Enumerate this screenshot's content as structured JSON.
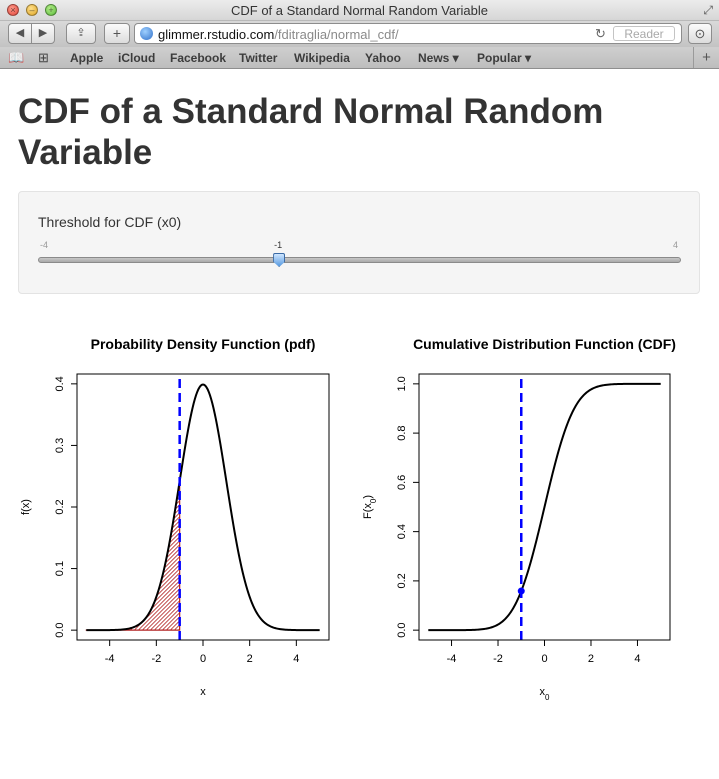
{
  "window": {
    "title": "CDF of a Standard Normal Random Variable"
  },
  "toolbar": {
    "url_host": "glimmer.rstudio.com",
    "url_path": "/fditraglia/normal_cdf/",
    "reader_label": "Reader"
  },
  "bookmarks": {
    "items": [
      "Apple",
      "iCloud",
      "Facebook",
      "Twitter",
      "Wikipedia",
      "Yahoo",
      "News ▾",
      "Popular ▾"
    ]
  },
  "page": {
    "title": "CDF of a Standard Normal Random Variable"
  },
  "slider": {
    "label": "Threshold for CDF (x0)",
    "min_label": "-4",
    "max_label": "4",
    "value_label": "-1",
    "min": -4,
    "max": 4,
    "value": -1
  },
  "colors": {
    "curve": "#000000",
    "threshold_line": "#0000ff",
    "shade": "#b22222"
  },
  "chart_data": [
    {
      "type": "line",
      "title": "Probability Density Function (pdf)",
      "xlabel": "x",
      "ylabel": "f(x)",
      "xlim": [
        -5,
        5
      ],
      "ylim": [
        0,
        0.4
      ],
      "x_ticks": [
        "-4",
        "-2",
        "0",
        "2",
        "4"
      ],
      "y_ticks": [
        "0.0",
        "0.1",
        "0.2",
        "0.3",
        "0.4"
      ],
      "x": [
        -5,
        -4.5,
        -4,
        -3.5,
        -3,
        -2.5,
        -2,
        -1.5,
        -1,
        -0.5,
        0,
        0.5,
        1,
        1.5,
        2,
        2.5,
        3,
        3.5,
        4,
        4.5,
        5
      ],
      "series": [
        {
          "values": [
            0.0,
            0.0,
            0.0001,
            0.0009,
            0.0044,
            0.0175,
            0.054,
            0.1295,
            0.242,
            0.3521,
            0.3989,
            0.3521,
            0.242,
            0.1295,
            0.054,
            0.0175,
            0.0044,
            0.0009,
            0.0001,
            0.0,
            0.0
          ]
        }
      ],
      "threshold_x": -1,
      "shaded_region": "x <= -1"
    },
    {
      "type": "line",
      "title": "Cumulative Distribution Function (CDF)",
      "xlabel": "x0",
      "ylabel": "F(x0)",
      "xlim": [
        -5,
        5
      ],
      "ylim": [
        0,
        1
      ],
      "x_ticks": [
        "-4",
        "-2",
        "0",
        "2",
        "4"
      ],
      "y_ticks": [
        "0.0",
        "0.2",
        "0.4",
        "0.6",
        "0.8",
        "1.0"
      ],
      "x": [
        -5,
        -4.5,
        -4,
        -3.5,
        -3,
        -2.5,
        -2,
        -1.5,
        -1,
        -0.5,
        0,
        0.5,
        1,
        1.5,
        2,
        2.5,
        3,
        3.5,
        4,
        4.5,
        5
      ],
      "series": [
        {
          "values": [
            0.0,
            0.0,
            0.0,
            0.0002,
            0.0013,
            0.0062,
            0.0228,
            0.0668,
            0.1587,
            0.3085,
            0.5,
            0.6915,
            0.8413,
            0.9332,
            0.9772,
            0.9938,
            0.9987,
            0.9998,
            1.0,
            1.0,
            1.0
          ]
        }
      ],
      "threshold_x": -1,
      "threshold_y": 0.1587
    }
  ]
}
